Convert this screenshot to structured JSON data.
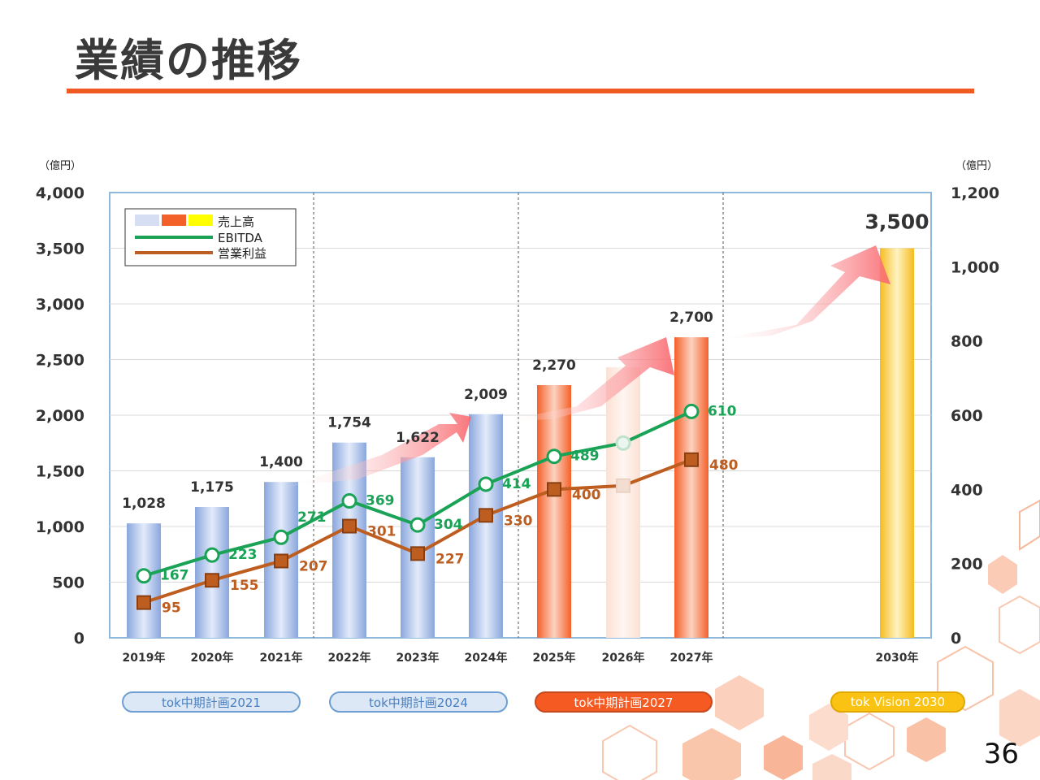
{
  "slide": {
    "title": "業績の推移",
    "page_number": "36",
    "left_unit": "（億円）",
    "right_unit": "（億円）"
  },
  "colors": {
    "accent": "#f05a22",
    "bar_actual": "#9fb6e2",
    "bar_plan": "#f4602a",
    "bar_vision": "#f8c62a",
    "ebitda": "#1aa356",
    "operating_income": "#bd5d20"
  },
  "legend": {
    "sales": "売上高",
    "ebitda": "EBITDA",
    "operating_income": "営業利益"
  },
  "plans": [
    {
      "label": "tok中期計画2021",
      "style": "blue"
    },
    {
      "label": "tok中期計画2024",
      "style": "blue"
    },
    {
      "label": "tok中期計画2027",
      "style": "orange"
    },
    {
      "label": "tok Vision 2030",
      "style": "yellow"
    }
  ],
  "chart_data": {
    "type": "bar",
    "title": "",
    "categories": [
      "2019年",
      "2020年",
      "2021年",
      "2022年",
      "2023年",
      "2024年",
      "2025年",
      "2026年",
      "2027年",
      "2030年"
    ],
    "series": [
      {
        "name": "売上高",
        "axis": "left",
        "type": "bar",
        "values": [
          1028,
          1175,
          1400,
          1754,
          1622,
          2009,
          2270,
          2430,
          2700,
          3500
        ],
        "labels": [
          "1,028",
          "1,175",
          "1,400",
          "1,754",
          "1,622",
          "2,009",
          "2,270",
          "",
          "2,700",
          "3,500"
        ]
      },
      {
        "name": "EBITDA",
        "axis": "right",
        "type": "line",
        "values": [
          167,
          223,
          271,
          369,
          304,
          414,
          489,
          525,
          610,
          null
        ],
        "labels": [
          "167",
          "223",
          "271",
          "369",
          "304",
          "414",
          "489",
          "",
          "610",
          ""
        ]
      },
      {
        "name": "営業利益",
        "axis": "right",
        "type": "line",
        "values": [
          95,
          155,
          207,
          301,
          227,
          330,
          400,
          410,
          480,
          null
        ],
        "labels": [
          "95",
          "155",
          "207",
          "301",
          "227",
          "330",
          "400",
          "",
          "480",
          ""
        ]
      }
    ],
    "y_left": {
      "min": 0,
      "max": 4000,
      "ticks": [
        0,
        500,
        1000,
        1500,
        2000,
        2500,
        3000,
        3500,
        4000
      ],
      "tick_labels": [
        "0",
        "500",
        "1,000",
        "1,500",
        "2,000",
        "2,500",
        "3,000",
        "3,500",
        "4,000"
      ]
    },
    "y_right": {
      "min": 0,
      "max": 1200,
      "ticks": [
        0,
        200,
        400,
        600,
        800,
        1000,
        1200
      ],
      "tick_labels": [
        "0",
        "200",
        "400",
        "600",
        "800",
        "1,000",
        "1,200"
      ]
    },
    "grid": true,
    "legend_position": "top-left"
  }
}
